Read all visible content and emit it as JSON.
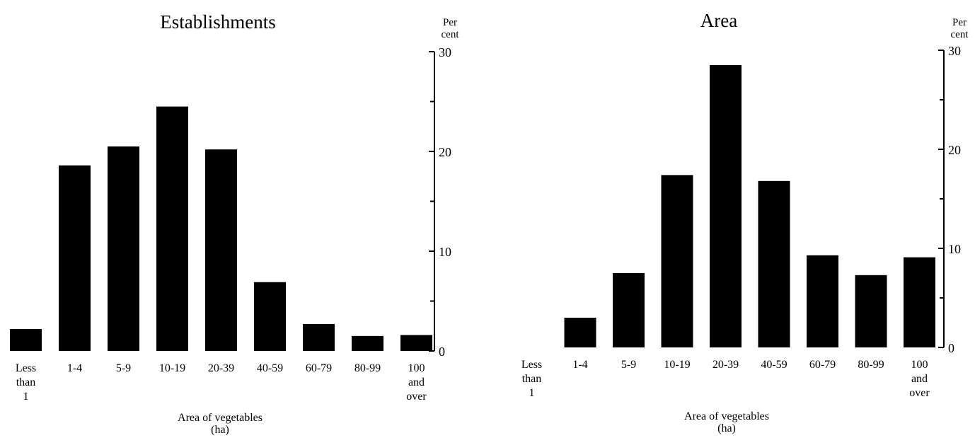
{
  "chart_data": [
    {
      "type": "bar",
      "title": "Establishments",
      "categories": [
        [
          "Less",
          "than",
          "1"
        ],
        [
          "1-4"
        ],
        [
          "5-9"
        ],
        [
          "10-19"
        ],
        [
          "20-39"
        ],
        [
          "40-59"
        ],
        [
          "60-79"
        ],
        [
          "80-99"
        ],
        [
          "100",
          "and",
          "over"
        ]
      ],
      "values": [
        2.2,
        18.6,
        20.5,
        24.5,
        20.2,
        6.9,
        2.7,
        1.5,
        1.6
      ],
      "xlabel": [
        "Area of vegetables",
        "(ha)"
      ],
      "ylabel": [
        "Per",
        "cent"
      ],
      "ylim": [
        0,
        30
      ],
      "yticks": [
        "0",
        "10",
        "20",
        "30"
      ],
      "yaxis_side": "right"
    },
    {
      "type": "bar",
      "title": "Area",
      "categories": [
        [
          "Less",
          "than",
          "1"
        ],
        [
          "1-4"
        ],
        [
          "5-9"
        ],
        [
          "10-19"
        ],
        [
          "20-39"
        ],
        [
          "40-59"
        ],
        [
          "60-79"
        ],
        [
          "80-99"
        ],
        [
          "100",
          "and",
          "over"
        ]
      ],
      "values": [
        0,
        3.0,
        7.5,
        17.4,
        28.5,
        16.8,
        9.3,
        7.3,
        9.1
      ],
      "xlabel": [
        "Area of vegetables",
        "(ha)"
      ],
      "ylabel": [
        "Per",
        "cent"
      ],
      "ylim": [
        0,
        30
      ],
      "yticks": [
        "0",
        "10",
        "20",
        "30"
      ],
      "yaxis_side": "right"
    }
  ],
  "colors": {
    "bar": "#000000",
    "background": "#ffffff"
  }
}
